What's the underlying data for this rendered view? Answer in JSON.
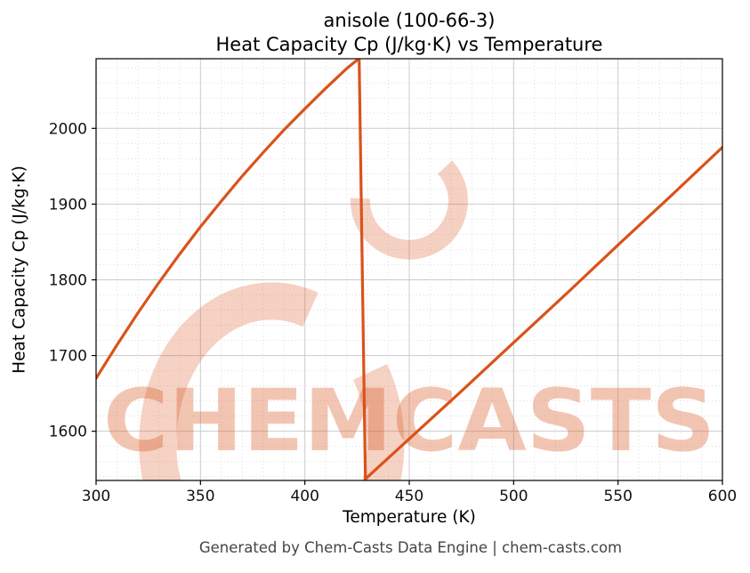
{
  "title": {
    "line1": "anisole (100-66-3)",
    "line2": "Heat Capacity Cp (J/kg·K) vs Temperature"
  },
  "footer": "Generated by Chem-Casts Data Engine | chem-casts.com",
  "watermark": {
    "text": "CHEMCASTS",
    "color": "#d9531b"
  },
  "chart_data": {
    "type": "line",
    "title": "anisole (100-66-3) Heat Capacity Cp (J/kg·K) vs Temperature",
    "xlabel": "Temperature (K)",
    "ylabel": "Heat Capacity Cp (J/kg·K)",
    "xlim": [
      300,
      600
    ],
    "ylim": [
      1535,
      2092
    ],
    "xticks": [
      300,
      350,
      400,
      450,
      500,
      550,
      600
    ],
    "yticks": [
      1600,
      1700,
      1800,
      1900,
      2000
    ],
    "grid": true,
    "line_color": "#d9531b",
    "series": [
      {
        "name": "Cp liquid",
        "points": [
          [
            300,
            1670
          ],
          [
            310,
            1714
          ],
          [
            320,
            1756
          ],
          [
            330,
            1796
          ],
          [
            340,
            1834
          ],
          [
            350,
            1870
          ],
          [
            360,
            1904
          ],
          [
            370,
            1937
          ],
          [
            380,
            1968
          ],
          [
            390,
            1998
          ],
          [
            400,
            2026
          ],
          [
            410,
            2053
          ],
          [
            420,
            2079
          ],
          [
            424,
            2088
          ],
          [
            426,
            2092
          ]
        ]
      },
      {
        "name": "boiling transition drop",
        "points": [
          [
            426,
            2092
          ],
          [
            429,
            1537
          ]
        ]
      },
      {
        "name": "Cp vapor",
        "points": [
          [
            429,
            1537
          ],
          [
            450,
            1590
          ],
          [
            475,
            1653
          ],
          [
            500,
            1717
          ],
          [
            525,
            1781
          ],
          [
            550,
            1846
          ],
          [
            575,
            1910
          ],
          [
            600,
            1975
          ]
        ]
      }
    ]
  }
}
